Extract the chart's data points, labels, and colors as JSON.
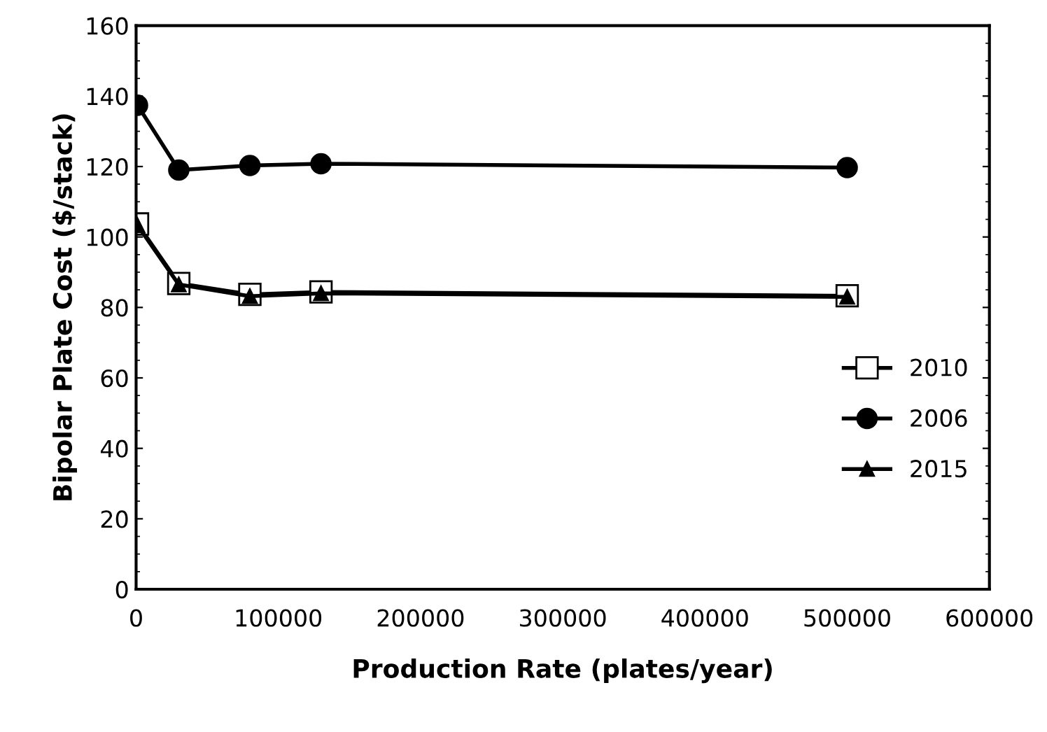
{
  "chart_data": {
    "type": "line",
    "xlabel": "Production Rate (plates/year)",
    "ylabel": "Bipolar Plate Cost ($/stack)",
    "x": [
      1000,
      30000,
      80000,
      130000,
      500000
    ],
    "series": [
      {
        "name": "2010",
        "color": "#000000",
        "values": [
          103.7,
          86.8,
          83.7,
          84.4,
          83.3
        ],
        "marker": "square"
      },
      {
        "name": "2006",
        "color": "#000000",
        "values": [
          137.4,
          119,
          120.3,
          120.8,
          119.7
        ],
        "marker": "circle"
      },
      {
        "name": "2015",
        "color": "#000000",
        "values": [
          103.3,
          86.5,
          83.2,
          84,
          83
        ],
        "marker": "triangle"
      }
    ],
    "xlim": [
      0,
      600000
    ],
    "xticks": [
      0,
      100000,
      200000,
      300000,
      400000,
      500000,
      600000
    ],
    "ylim": [
      0,
      160
    ],
    "yticks": [
      0,
      20,
      40,
      60,
      80,
      100,
      120,
      140,
      160
    ],
    "grid": false,
    "legend": "right",
    "line_style": "solid"
  }
}
